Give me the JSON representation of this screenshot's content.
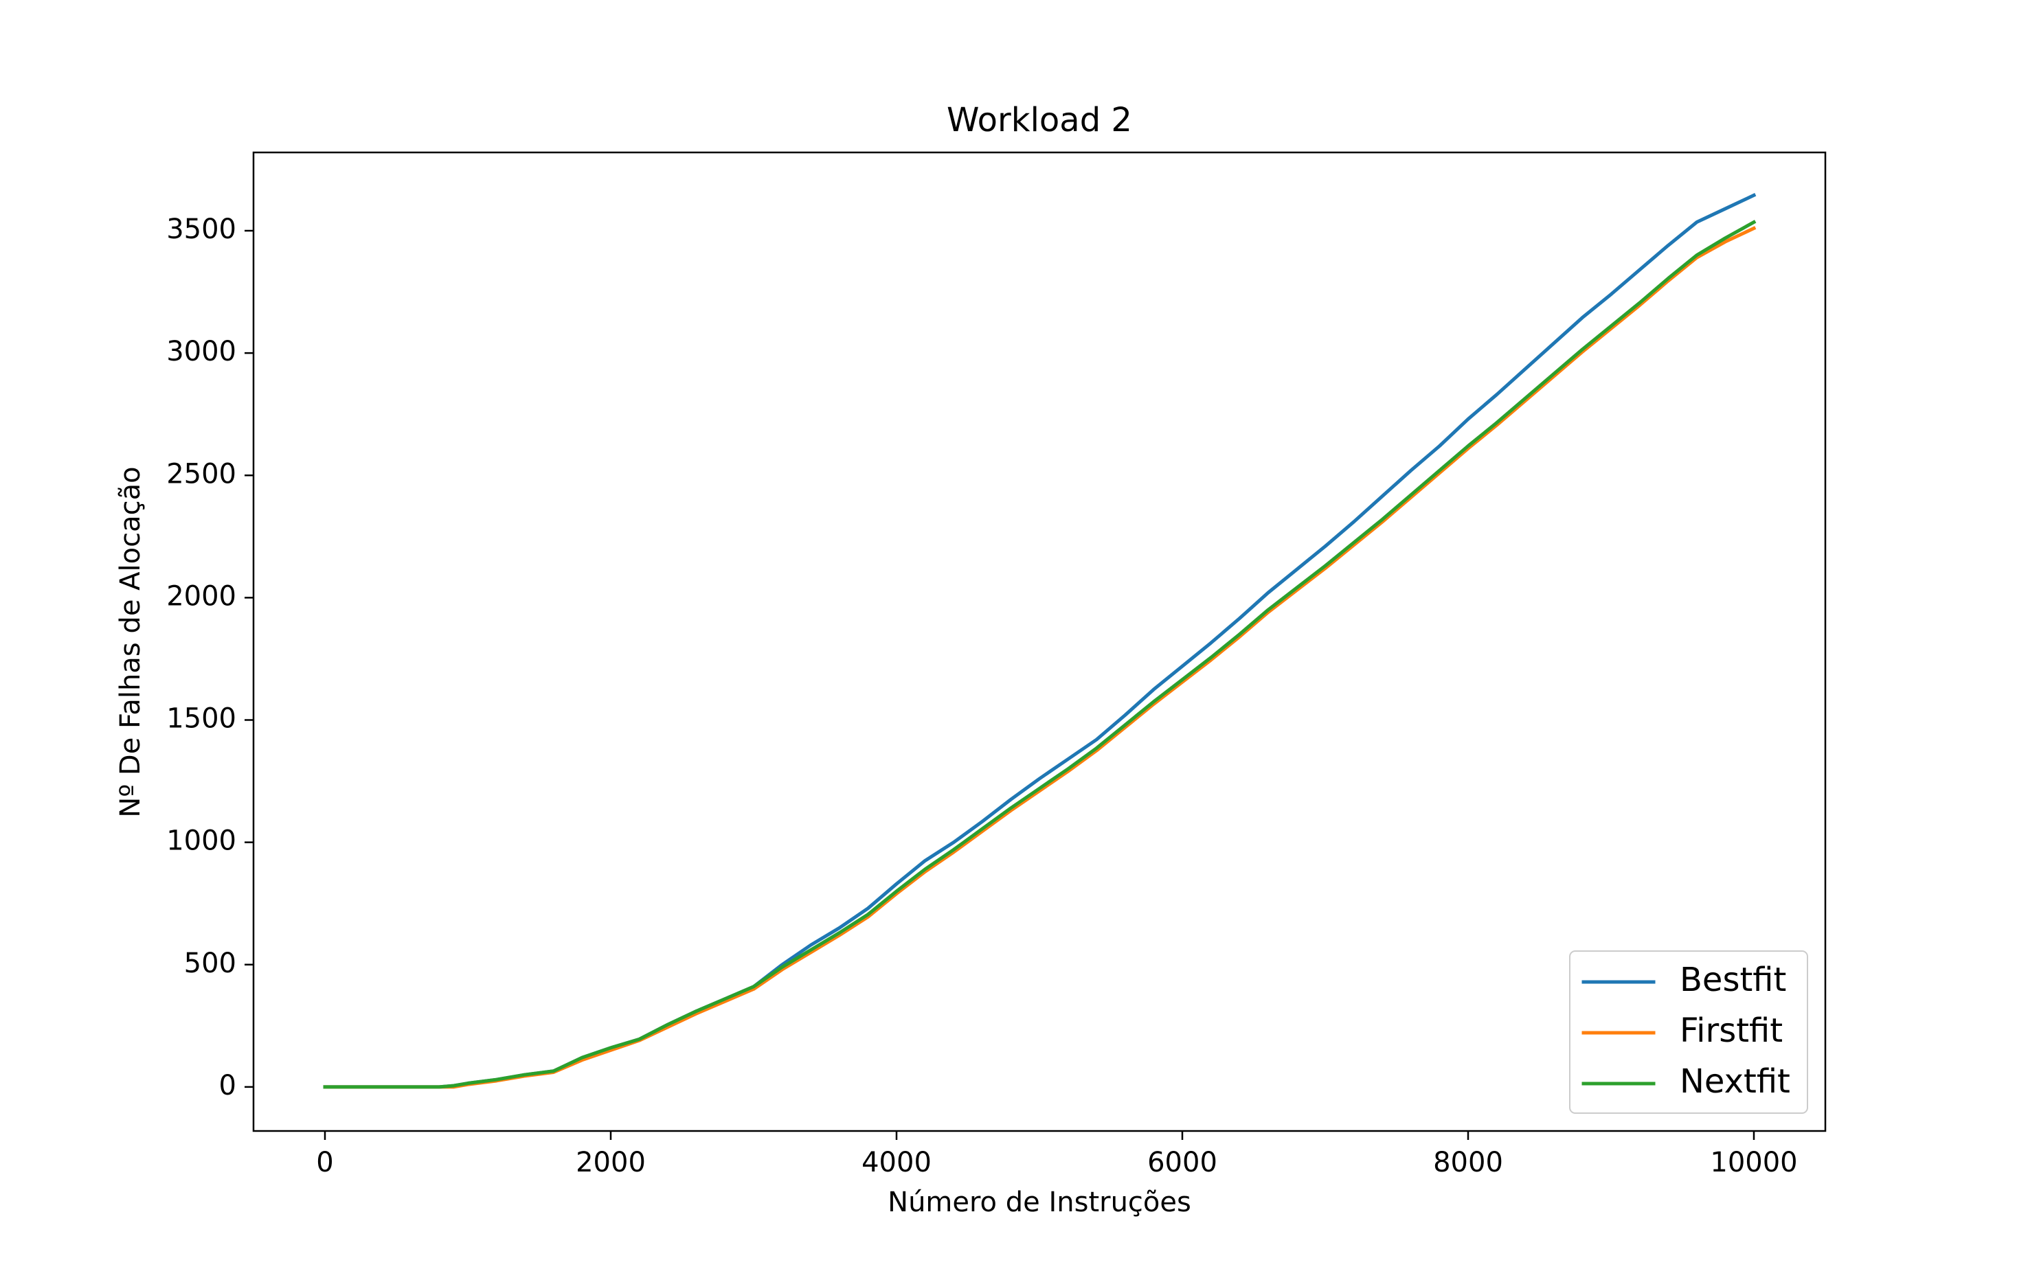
{
  "chart_data": {
    "type": "line",
    "title": "Workload 2",
    "xlabel": "Número de Instruções",
    "ylabel": "Nº De Falhas de Alocação",
    "xlim": [
      -500,
      10500
    ],
    "ylim": [
      -180,
      3820
    ],
    "xticks": [
      0,
      2000,
      4000,
      6000,
      8000,
      10000
    ],
    "yticks": [
      0,
      500,
      1000,
      1500,
      2000,
      2500,
      3000,
      3500
    ],
    "grid": false,
    "legend_position": "lower right",
    "x": [
      0,
      500,
      800,
      900,
      1000,
      1200,
      1400,
      1600,
      1800,
      2000,
      2200,
      2400,
      2600,
      2800,
      3000,
      3200,
      3400,
      3600,
      3800,
      4000,
      4200,
      4400,
      4600,
      4800,
      5000,
      5200,
      5400,
      5600,
      5800,
      6000,
      6200,
      6400,
      6600,
      6800,
      7000,
      7200,
      7400,
      7600,
      7800,
      8000,
      8200,
      8400,
      8600,
      8800,
      9000,
      9200,
      9400,
      9600,
      9800,
      10000
    ],
    "series": [
      {
        "name": "Bestfit",
        "color": "#1f77b4",
        "values": [
          0,
          0,
          0,
          5,
          15,
          30,
          50,
          65,
          120,
          160,
          195,
          255,
          310,
          360,
          410,
          500,
          580,
          650,
          730,
          830,
          925,
          1000,
          1085,
          1175,
          1260,
          1340,
          1420,
          1520,
          1625,
          1720,
          1815,
          1915,
          2020,
          2115,
          2210,
          2310,
          2415,
          2520,
          2620,
          2730,
          2830,
          2935,
          3040,
          3145,
          3240,
          3340,
          3440,
          3535,
          3590,
          3645
        ]
      },
      {
        "name": "Firstfit",
        "color": "#ff7f0e",
        "values": [
          0,
          0,
          0,
          0,
          10,
          25,
          45,
          60,
          110,
          150,
          190,
          245,
          300,
          350,
          400,
          480,
          550,
          620,
          695,
          790,
          880,
          960,
          1045,
          1130,
          1210,
          1290,
          1375,
          1470,
          1565,
          1655,
          1745,
          1840,
          1940,
          2030,
          2120,
          2215,
          2310,
          2410,
          2510,
          2610,
          2705,
          2805,
          2905,
          3005,
          3100,
          3195,
          3295,
          3390,
          3455,
          3510
        ]
      },
      {
        "name": "Nextfit",
        "color": "#2ca02c",
        "values": [
          0,
          0,
          0,
          5,
          15,
          30,
          50,
          65,
          120,
          160,
          195,
          255,
          310,
          360,
          410,
          490,
          560,
          630,
          705,
          800,
          890,
          970,
          1055,
          1140,
          1220,
          1300,
          1385,
          1480,
          1575,
          1665,
          1755,
          1850,
          1950,
          2040,
          2130,
          2225,
          2320,
          2420,
          2520,
          2620,
          2715,
          2815,
          2915,
          3015,
          3110,
          3205,
          3305,
          3400,
          3470,
          3535
        ]
      }
    ]
  }
}
